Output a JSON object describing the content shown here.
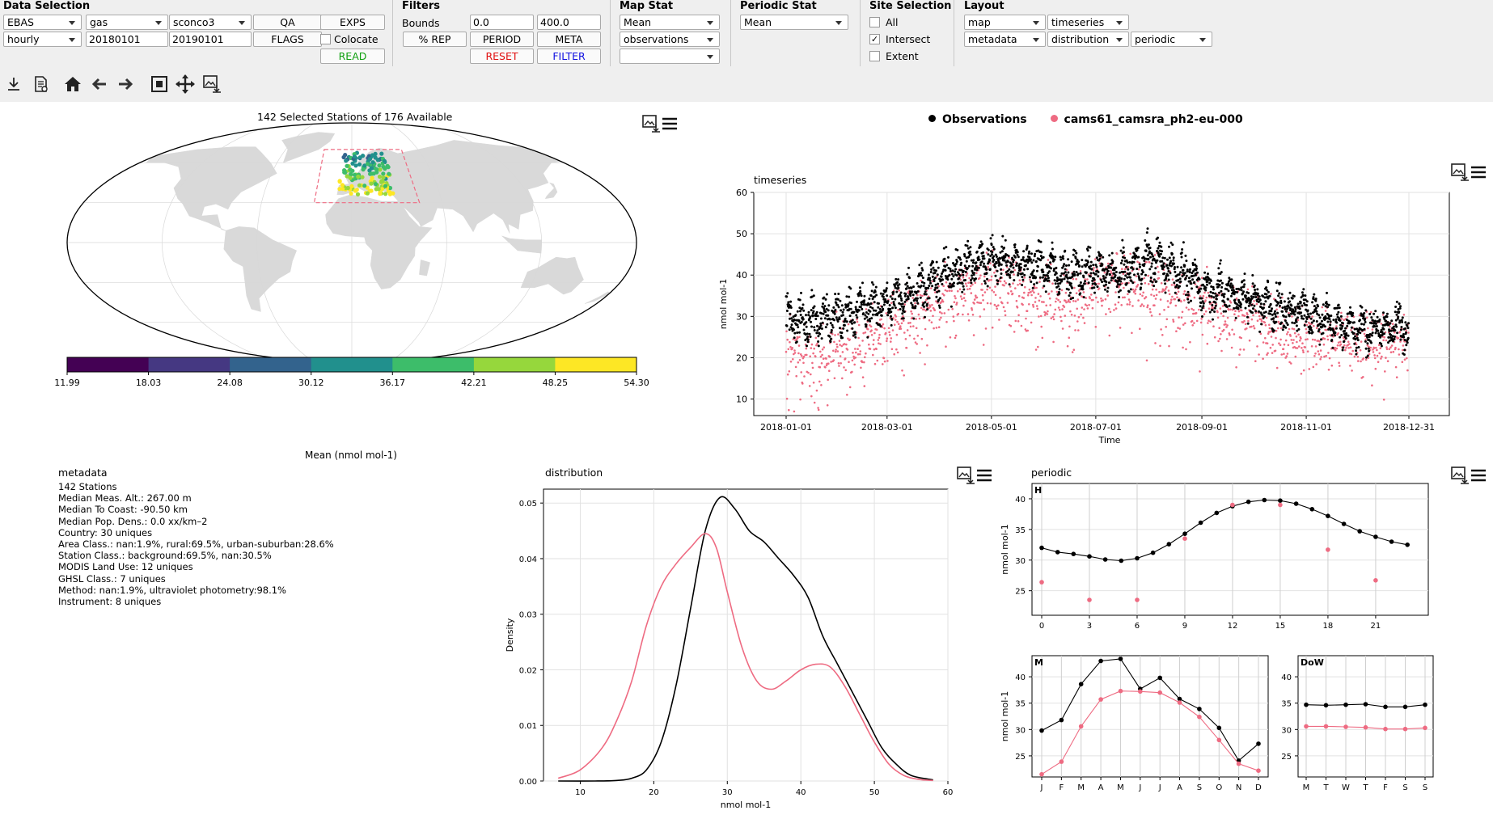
{
  "data_selection": {
    "title": "Data Selection",
    "network": "EBAS",
    "species_type": "gas",
    "species": "sconco3",
    "resolution": "hourly",
    "start_date": "20180101",
    "end_date": "20190101",
    "qa_label": "QA",
    "exps_label": "EXPS",
    "flags_label": "FLAGS",
    "colocate_label": "Colocate",
    "read_label": "READ"
  },
  "filters": {
    "title": "Filters",
    "bounds_label": "Bounds",
    "lower": "0.0",
    "upper": "400.0",
    "rep_label": "% REP",
    "period_label": "PERIOD",
    "meta_label": "META",
    "reset_label": "RESET",
    "filter_label": "FILTER"
  },
  "map_stat": {
    "title": "Map Stat",
    "stat": "Mean",
    "source": "observations",
    "third": ""
  },
  "periodic_stat": {
    "title": "Periodic Stat",
    "stat": "Mean"
  },
  "site_selection": {
    "title": "Site Selection",
    "all_label": "All",
    "intersect_label": "Intersect",
    "extent_label": "Extent",
    "intersect_checked": true
  },
  "layout": {
    "title": "Layout",
    "slot1": "map",
    "slot2": "timeseries",
    "slot3": "metadata",
    "slot4": "distribution",
    "slot5": "periodic"
  },
  "nav_icons": [
    "download-icon",
    "report-icon",
    "home-icon",
    "back-arrow-icon",
    "forward-arrow-icon",
    "zoom-rect-icon",
    "pan-move-icon",
    "save-figure-icon"
  ],
  "colors": {
    "observations": "#000000",
    "experiment": "#ee6b82",
    "land": "#d9d9d9",
    "bbox": "#ee6b82",
    "read": "#11a011",
    "reset": "#e01010",
    "filter": "#1010e0"
  },
  "map": {
    "title": "142 Selected Stations of 176 Available",
    "colorbar_ticks": [
      "11.99",
      "18.03",
      "24.08",
      "30.12",
      "36.17",
      "42.21",
      "48.25",
      "54.30"
    ],
    "colorbar_colors": [
      "#440154",
      "#453882",
      "#33638d",
      "#21908d",
      "#3dbd6a",
      "#96d73c",
      "#fde725"
    ],
    "colorbar_label": "Mean  (nmol mol-1)"
  },
  "legend": {
    "observations": "Observations",
    "experiment": "cams61_camsra_ph2-eu-000"
  },
  "metadata": {
    "title": "metadata",
    "lines": [
      "142 Stations",
      "Median Meas. Alt.: 267.00 m",
      "Median To Coast: -90.50 km",
      "Median Pop. Dens.: 0.0 xx/km–2",
      "Country: 30 uniques",
      "Area Class.: nan:1.9%, rural:69.5%, urban-suburban:28.6%",
      "Station Class.: background:69.5%, nan:30.5%",
      "MODIS Land Use: 12 uniques",
      "GHSL Class.: 7 uniques",
      "Method: nan:1.9%, ultraviolet photometry:98.1%",
      "Instrument: 8 uniques"
    ]
  },
  "chart_data": [
    {
      "type": "scatter",
      "title": "timeseries",
      "xlabel": "Time",
      "ylabel": "nmol mol-1",
      "xticks": [
        "2018-01-01",
        "2018-03-01",
        "2018-05-01",
        "2018-07-01",
        "2018-09-01",
        "2018-11-01",
        "2018-12-31"
      ],
      "ylim": [
        6,
        60
      ],
      "yticks": [
        10,
        20,
        30,
        40,
        50,
        60
      ],
      "series": [
        {
          "name": "Observations",
          "x": [
            "2018-01-01",
            "2018-01-15",
            "2018-02-01",
            "2018-02-15",
            "2018-03-01",
            "2018-03-15",
            "2018-04-01",
            "2018-04-15",
            "2018-05-01",
            "2018-05-15",
            "2018-06-01",
            "2018-06-15",
            "2018-07-01",
            "2018-07-15",
            "2018-08-01",
            "2018-08-15",
            "2018-09-01",
            "2018-09-15",
            "2018-10-01",
            "2018-10-15",
            "2018-11-01",
            "2018-11-15",
            "2018-12-01",
            "2018-12-15",
            "2018-12-31"
          ],
          "y": [
            30,
            29,
            30,
            32,
            33,
            36,
            39,
            42,
            44,
            43,
            42,
            40,
            41,
            40,
            44,
            42,
            37,
            36,
            34,
            32,
            31,
            29,
            27,
            27,
            28
          ]
        },
        {
          "name": "cams61_camsra_ph2-eu-000",
          "x": [
            "2018-01-01",
            "2018-01-15",
            "2018-02-01",
            "2018-02-15",
            "2018-03-01",
            "2018-03-15",
            "2018-04-01",
            "2018-04-15",
            "2018-05-01",
            "2018-05-15",
            "2018-06-01",
            "2018-06-15",
            "2018-07-01",
            "2018-07-15",
            "2018-08-01",
            "2018-08-15",
            "2018-09-01",
            "2018-09-15",
            "2018-10-01",
            "2018-10-15",
            "2018-11-01",
            "2018-11-15",
            "2018-12-01",
            "2018-12-15",
            "2018-12-31"
          ],
          "y": [
            22,
            21,
            22,
            24,
            27,
            30,
            34,
            37,
            38,
            37,
            36,
            35,
            38,
            39,
            38,
            36,
            33,
            32,
            30,
            28,
            26,
            25,
            24,
            25,
            25
          ]
        }
      ]
    },
    {
      "type": "line",
      "title": "distribution",
      "xlabel": "nmol mol-1",
      "ylabel": "Density",
      "xlim": [
        5,
        60
      ],
      "ylim": [
        0,
        0.0525
      ],
      "xticks": [
        10,
        20,
        30,
        40,
        50,
        60
      ],
      "yticks": [
        "0.00",
        "0.01",
        "0.02",
        "0.03",
        "0.04",
        "0.05"
      ],
      "series": [
        {
          "name": "Observations",
          "x": [
            7,
            12,
            15,
            17,
            19,
            21,
            23,
            25,
            27,
            29,
            31,
            33,
            35,
            37,
            39,
            41,
            43,
            45,
            47,
            49,
            51,
            53,
            55,
            58
          ],
          "y": [
            0,
            0,
            0.0001,
            0.0005,
            0.002,
            0.007,
            0.017,
            0.031,
            0.045,
            0.051,
            0.049,
            0.045,
            0.043,
            0.04,
            0.037,
            0.033,
            0.026,
            0.021,
            0.016,
            0.011,
            0.006,
            0.003,
            0.001,
            0.0002
          ]
        },
        {
          "name": "cams61_camsra_ph2-eu-000",
          "x": [
            7,
            10,
            13,
            15,
            17,
            19,
            21,
            23,
            25,
            27,
            28.5,
            30,
            32,
            34,
            36,
            38,
            40,
            42,
            44,
            46,
            48,
            50,
            52,
            54,
            56,
            58
          ],
          "y": [
            0.0005,
            0.002,
            0.006,
            0.011,
            0.018,
            0.028,
            0.035,
            0.039,
            0.042,
            0.0445,
            0.042,
            0.034,
            0.024,
            0.018,
            0.0165,
            0.018,
            0.02,
            0.021,
            0.0205,
            0.017,
            0.012,
            0.007,
            0.003,
            0.001,
            0.0003,
            0.0001
          ]
        }
      ]
    },
    {
      "type": "line",
      "title": "periodic",
      "panel": "H",
      "ylabel": "nmol mol-1",
      "xticks": [
        0,
        3,
        6,
        9,
        12,
        15,
        18,
        21
      ],
      "ylim": [
        21,
        42.5
      ],
      "yticks": [
        25,
        30,
        35,
        40
      ],
      "series": [
        {
          "name": "Observations",
          "x": [
            0,
            1,
            2,
            3,
            4,
            5,
            6,
            7,
            8,
            9,
            10,
            11,
            12,
            13,
            14,
            15,
            16,
            17,
            18,
            19,
            20,
            21,
            22,
            23
          ],
          "y": [
            32.0,
            31.3,
            31.0,
            30.6,
            30.1,
            29.9,
            30.3,
            31.2,
            32.6,
            34.3,
            36.1,
            37.7,
            38.8,
            39.5,
            39.8,
            39.7,
            39.2,
            38.3,
            37.2,
            35.9,
            34.7,
            33.8,
            33.0,
            32.5
          ]
        },
        {
          "name": "cams61_camsra_ph2-eu-000",
          "x": [
            0,
            3,
            6,
            9,
            12,
            15,
            18,
            21
          ],
          "y": [
            26.4,
            23.5,
            23.5,
            33.5,
            39.0,
            39.0,
            31.7,
            26.7
          ]
        }
      ]
    },
    {
      "type": "line",
      "title": "",
      "panel": "M",
      "ylabel": "nmol mol-1",
      "categories": [
        "J",
        "F",
        "M",
        "A",
        "M",
        "J",
        "J",
        "A",
        "S",
        "O",
        "N",
        "D"
      ],
      "ylim": [
        21,
        44
      ],
      "yticks": [
        25,
        30,
        35,
        40
      ],
      "series": [
        {
          "name": "Observations",
          "values": [
            29.8,
            31.8,
            38.6,
            43.0,
            43.4,
            37.7,
            39.8,
            35.8,
            33.9,
            30.3,
            24.1,
            27.3
          ]
        },
        {
          "name": "cams61_camsra_ph2-eu-000",
          "values": [
            21.5,
            23.9,
            30.6,
            35.7,
            37.3,
            37.2,
            37.0,
            35.1,
            32.4,
            28.0,
            23.5,
            22.2
          ]
        }
      ]
    },
    {
      "type": "line",
      "title": "",
      "panel": "DoW",
      "categories": [
        "M",
        "T",
        "W",
        "T",
        "F",
        "S",
        "S"
      ],
      "ylim": [
        21,
        44
      ],
      "yticks": [
        25,
        30,
        35,
        40
      ],
      "series": [
        {
          "name": "Observations",
          "values": [
            34.7,
            34.6,
            34.7,
            34.8,
            34.3,
            34.3,
            34.7
          ]
        },
        {
          "name": "cams61_camsra_ph2-eu-000",
          "values": [
            30.6,
            30.6,
            30.5,
            30.4,
            30.1,
            30.1,
            30.3
          ]
        }
      ]
    }
  ]
}
